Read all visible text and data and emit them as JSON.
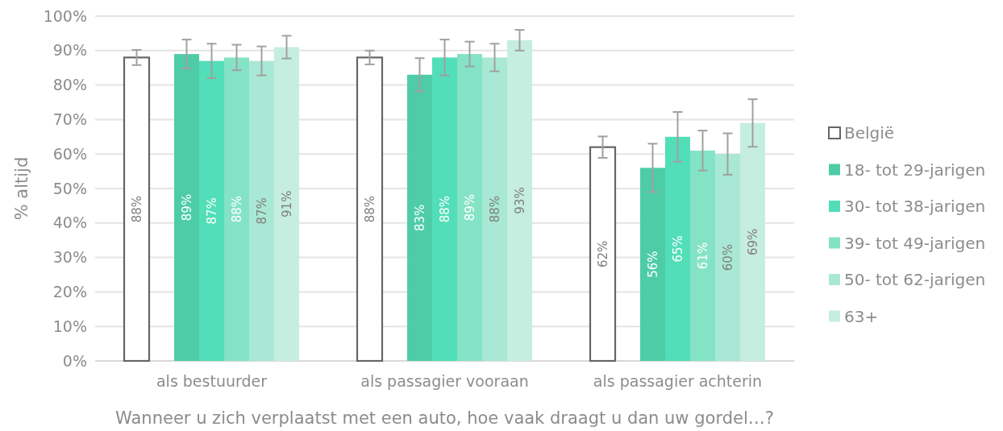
{
  "chart_data": {
    "type": "bar",
    "xlabel": "Wanneer u zich verplaatst met een auto, hoe vaak draagt u dan uw gordel…?",
    "ylabel": "% altijd",
    "categories": [
      "als bestuurder",
      "als passagier vooraan",
      "als passagier achterin"
    ],
    "series": [
      {
        "name": "België",
        "color": "#ffffff",
        "values": [
          88,
          88,
          62
        ],
        "value_labels": [
          "88%",
          "88%",
          "62%"
        ],
        "errors": [
          2.2,
          2,
          3.1
        ]
      },
      {
        "name": "18- tot 29-jarigen",
        "color": "#4ecca8",
        "values": [
          89,
          83,
          56
        ],
        "value_labels": [
          "89%",
          "83%",
          "56%"
        ],
        "errors": [
          4.2,
          4.8,
          7
        ]
      },
      {
        "name": "30- tot 38-jarigen",
        "color": "#52deb8",
        "values": [
          87,
          88,
          65
        ],
        "value_labels": [
          "87%",
          "88%",
          "65%"
        ],
        "errors": [
          5,
          5.2,
          7.2
        ]
      },
      {
        "name": "39- tot 49-jarigen",
        "color": "#84e3c5",
        "values": [
          88,
          89,
          61
        ],
        "value_labels": [
          "88%",
          "89%",
          "61%"
        ],
        "errors": [
          3.7,
          3.6,
          5.8
        ]
      },
      {
        "name": "50- tot 62-jarigen",
        "color": "#a9e8d4",
        "values": [
          87,
          88,
          60
        ],
        "value_labels": [
          "87%",
          "88%",
          "60%"
        ],
        "errors": [
          4.2,
          4,
          6
        ]
      },
      {
        "name": "63+",
        "color": "#c5eee0",
        "values": [
          91,
          93,
          69
        ],
        "value_labels": [
          "91%",
          "93%",
          "69%"
        ],
        "errors": [
          3.3,
          3,
          6.9
        ]
      }
    ],
    "ylim": [
      0,
      100
    ],
    "yticks": [
      {
        "value": 0,
        "label": "0%"
      },
      {
        "value": 10,
        "label": "10%"
      },
      {
        "value": 20,
        "label": "20%"
      },
      {
        "value": 30,
        "label": "30%"
      },
      {
        "value": 40,
        "label": "40%"
      },
      {
        "value": 50,
        "label": "50%"
      },
      {
        "value": 60,
        "label": "60%"
      },
      {
        "value": 70,
        "label": "70%"
      },
      {
        "value": 80,
        "label": "80%"
      },
      {
        "value": 90,
        "label": "90%"
      },
      {
        "value": 100,
        "label": "100%"
      }
    ],
    "grid": "y",
    "legend": "right"
  }
}
